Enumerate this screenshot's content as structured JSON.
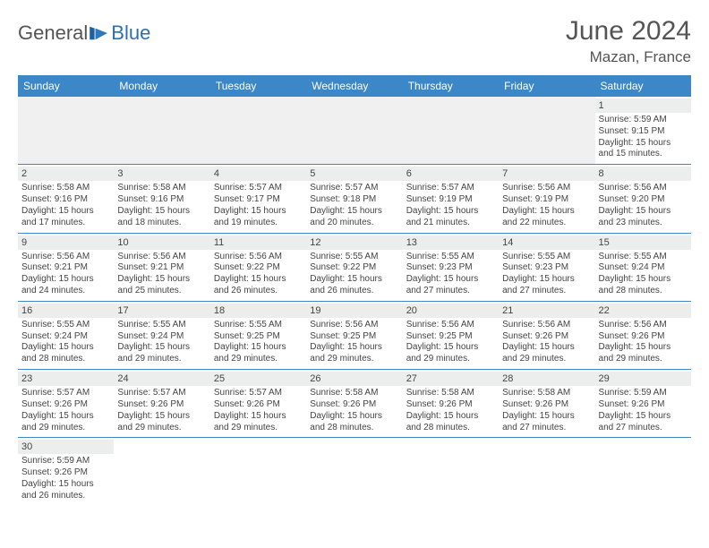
{
  "brand": {
    "part1": "General",
    "part2": "Blue"
  },
  "header": {
    "month_title": "June 2024",
    "location": "Mazan, France"
  },
  "colors": {
    "header_bg": "#3b87c8",
    "header_text": "#ffffff",
    "rule": "#3b87c8",
    "daynum_bg": "#eceeee",
    "blank_bg": "#f0f0f0"
  },
  "week_headers": [
    "Sunday",
    "Monday",
    "Tuesday",
    "Wednesday",
    "Thursday",
    "Friday",
    "Saturday"
  ],
  "weeks": [
    [
      null,
      null,
      null,
      null,
      null,
      null,
      {
        "n": "1",
        "sunrise": "Sunrise: 5:59 AM",
        "sunset": "Sunset: 9:15 PM",
        "daylight": "Daylight: 15 hours and 15 minutes."
      }
    ],
    [
      {
        "n": "2",
        "sunrise": "Sunrise: 5:58 AM",
        "sunset": "Sunset: 9:16 PM",
        "daylight": "Daylight: 15 hours and 17 minutes."
      },
      {
        "n": "3",
        "sunrise": "Sunrise: 5:58 AM",
        "sunset": "Sunset: 9:16 PM",
        "daylight": "Daylight: 15 hours and 18 minutes."
      },
      {
        "n": "4",
        "sunrise": "Sunrise: 5:57 AM",
        "sunset": "Sunset: 9:17 PM",
        "daylight": "Daylight: 15 hours and 19 minutes."
      },
      {
        "n": "5",
        "sunrise": "Sunrise: 5:57 AM",
        "sunset": "Sunset: 9:18 PM",
        "daylight": "Daylight: 15 hours and 20 minutes."
      },
      {
        "n": "6",
        "sunrise": "Sunrise: 5:57 AM",
        "sunset": "Sunset: 9:19 PM",
        "daylight": "Daylight: 15 hours and 21 minutes."
      },
      {
        "n": "7",
        "sunrise": "Sunrise: 5:56 AM",
        "sunset": "Sunset: 9:19 PM",
        "daylight": "Daylight: 15 hours and 22 minutes."
      },
      {
        "n": "8",
        "sunrise": "Sunrise: 5:56 AM",
        "sunset": "Sunset: 9:20 PM",
        "daylight": "Daylight: 15 hours and 23 minutes."
      }
    ],
    [
      {
        "n": "9",
        "sunrise": "Sunrise: 5:56 AM",
        "sunset": "Sunset: 9:21 PM",
        "daylight": "Daylight: 15 hours and 24 minutes."
      },
      {
        "n": "10",
        "sunrise": "Sunrise: 5:56 AM",
        "sunset": "Sunset: 9:21 PM",
        "daylight": "Daylight: 15 hours and 25 minutes."
      },
      {
        "n": "11",
        "sunrise": "Sunrise: 5:56 AM",
        "sunset": "Sunset: 9:22 PM",
        "daylight": "Daylight: 15 hours and 26 minutes."
      },
      {
        "n": "12",
        "sunrise": "Sunrise: 5:55 AM",
        "sunset": "Sunset: 9:22 PM",
        "daylight": "Daylight: 15 hours and 26 minutes."
      },
      {
        "n": "13",
        "sunrise": "Sunrise: 5:55 AM",
        "sunset": "Sunset: 9:23 PM",
        "daylight": "Daylight: 15 hours and 27 minutes."
      },
      {
        "n": "14",
        "sunrise": "Sunrise: 5:55 AM",
        "sunset": "Sunset: 9:23 PM",
        "daylight": "Daylight: 15 hours and 27 minutes."
      },
      {
        "n": "15",
        "sunrise": "Sunrise: 5:55 AM",
        "sunset": "Sunset: 9:24 PM",
        "daylight": "Daylight: 15 hours and 28 minutes."
      }
    ],
    [
      {
        "n": "16",
        "sunrise": "Sunrise: 5:55 AM",
        "sunset": "Sunset: 9:24 PM",
        "daylight": "Daylight: 15 hours and 28 minutes."
      },
      {
        "n": "17",
        "sunrise": "Sunrise: 5:55 AM",
        "sunset": "Sunset: 9:24 PM",
        "daylight": "Daylight: 15 hours and 29 minutes."
      },
      {
        "n": "18",
        "sunrise": "Sunrise: 5:55 AM",
        "sunset": "Sunset: 9:25 PM",
        "daylight": "Daylight: 15 hours and 29 minutes."
      },
      {
        "n": "19",
        "sunrise": "Sunrise: 5:56 AM",
        "sunset": "Sunset: 9:25 PM",
        "daylight": "Daylight: 15 hours and 29 minutes."
      },
      {
        "n": "20",
        "sunrise": "Sunrise: 5:56 AM",
        "sunset": "Sunset: 9:25 PM",
        "daylight": "Daylight: 15 hours and 29 minutes."
      },
      {
        "n": "21",
        "sunrise": "Sunrise: 5:56 AM",
        "sunset": "Sunset: 9:26 PM",
        "daylight": "Daylight: 15 hours and 29 minutes."
      },
      {
        "n": "22",
        "sunrise": "Sunrise: 5:56 AM",
        "sunset": "Sunset: 9:26 PM",
        "daylight": "Daylight: 15 hours and 29 minutes."
      }
    ],
    [
      {
        "n": "23",
        "sunrise": "Sunrise: 5:57 AM",
        "sunset": "Sunset: 9:26 PM",
        "daylight": "Daylight: 15 hours and 29 minutes."
      },
      {
        "n": "24",
        "sunrise": "Sunrise: 5:57 AM",
        "sunset": "Sunset: 9:26 PM",
        "daylight": "Daylight: 15 hours and 29 minutes."
      },
      {
        "n": "25",
        "sunrise": "Sunrise: 5:57 AM",
        "sunset": "Sunset: 9:26 PM",
        "daylight": "Daylight: 15 hours and 29 minutes."
      },
      {
        "n": "26",
        "sunrise": "Sunrise: 5:58 AM",
        "sunset": "Sunset: 9:26 PM",
        "daylight": "Daylight: 15 hours and 28 minutes."
      },
      {
        "n": "27",
        "sunrise": "Sunrise: 5:58 AM",
        "sunset": "Sunset: 9:26 PM",
        "daylight": "Daylight: 15 hours and 28 minutes."
      },
      {
        "n": "28",
        "sunrise": "Sunrise: 5:58 AM",
        "sunset": "Sunset: 9:26 PM",
        "daylight": "Daylight: 15 hours and 27 minutes."
      },
      {
        "n": "29",
        "sunrise": "Sunrise: 5:59 AM",
        "sunset": "Sunset: 9:26 PM",
        "daylight": "Daylight: 15 hours and 27 minutes."
      }
    ],
    [
      {
        "n": "30",
        "sunrise": "Sunrise: 5:59 AM",
        "sunset": "Sunset: 9:26 PM",
        "daylight": "Daylight: 15 hours and 26 minutes."
      },
      null,
      null,
      null,
      null,
      null,
      null
    ]
  ]
}
